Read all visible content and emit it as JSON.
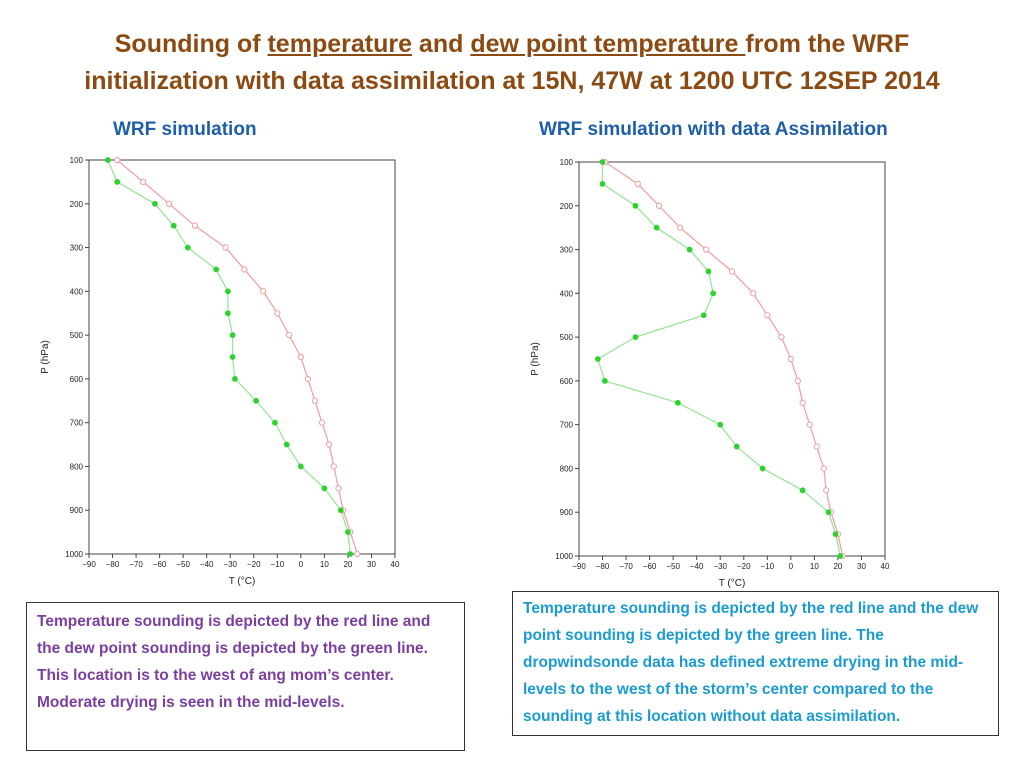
{
  "title": {
    "part1": "Sounding of ",
    "link1": "temperature",
    "part2": " and ",
    "link2": "dew point temperature ",
    "part3": "from the WRF",
    "line2": "initialization with data assimilation at 15N, 47W at 1200 UTC 12SEP 2014"
  },
  "panels": {
    "left_title": "WRF simulation",
    "right_title": "WRF simulation with data Assimilation"
  },
  "captions": {
    "left": "Temperature sounding is depicted by the red line and the dew point sounding is depicted by the green line. This location is to the west of ang mom’s center. Moderate drying is seen in the mid-levels.",
    "right": "Temperature sounding is depicted by the red line and the dew point sounding is depicted by the green line. The dropwindsonde data has defined extreme drying in the mid-levels to the west of the storm’s center compared to the sounding at this location without data assimilation."
  },
  "colors": {
    "temperature": "#F2A3A3",
    "dewpoint": "#2ED12E",
    "dewpoint_line": "#9BE59B"
  },
  "chart_data": [
    {
      "type": "line",
      "xlabel": "T (°C)",
      "ylabel": "P (hPa)",
      "xlim": [
        -90,
        40
      ],
      "ylim": [
        1000,
        100
      ],
      "xticks": [
        "−90",
        "−80",
        "−70",
        "−60",
        "−50",
        "−40",
        "−30",
        "−20",
        "−10",
        "0",
        "10",
        "20",
        "30",
        "40"
      ],
      "yticks": [
        "100",
        "200",
        "300",
        "400",
        "500",
        "600",
        "700",
        "800",
        "900",
        "1000"
      ],
      "grid": false,
      "series": [
        {
          "role": "temperature",
          "points": [
            [
              -78,
              100
            ],
            [
              -67,
              150
            ],
            [
              -56,
              200
            ],
            [
              -45,
              250
            ],
            [
              -32,
              300
            ],
            [
              -24,
              350
            ],
            [
              -16,
              400
            ],
            [
              -10,
              450
            ],
            [
              -5,
              500
            ],
            [
              0,
              550
            ],
            [
              3,
              600
            ],
            [
              6,
              650
            ],
            [
              9,
              700
            ],
            [
              12,
              750
            ],
            [
              14,
              800
            ],
            [
              16,
              850
            ],
            [
              18,
              900
            ],
            [
              21,
              950
            ],
            [
              24,
              1000
            ]
          ]
        },
        {
          "role": "dewpoint",
          "points": [
            [
              -82,
              100
            ],
            [
              -78,
              150
            ],
            [
              -62,
              200
            ],
            [
              -54,
              250
            ],
            [
              -48,
              300
            ],
            [
              -36,
              350
            ],
            [
              -31,
              400
            ],
            [
              -31,
              450
            ],
            [
              -29,
              500
            ],
            [
              -29,
              550
            ],
            [
              -28,
              600
            ],
            [
              -19,
              650
            ],
            [
              -11,
              700
            ],
            [
              -6,
              750
            ],
            [
              0,
              800
            ],
            [
              10,
              850
            ],
            [
              17,
              900
            ],
            [
              20,
              950
            ],
            [
              21,
              1000
            ]
          ]
        }
      ]
    },
    {
      "type": "line",
      "xlabel": "T (°C)",
      "ylabel": "P (hPa)",
      "xlim": [
        -90,
        40
      ],
      "ylim": [
        1000,
        100
      ],
      "xticks": [
        "−90",
        "−80",
        "−70",
        "−60",
        "−50",
        "−40",
        "−30",
        "−20",
        "−10",
        "0",
        "10",
        "20",
        "30",
        "40"
      ],
      "yticks": [
        "100",
        "200",
        "300",
        "400",
        "500",
        "600",
        "700",
        "800",
        "900",
        "1000"
      ],
      "grid": false,
      "series": [
        {
          "role": "temperature",
          "points": [
            [
              -79,
              100
            ],
            [
              -65,
              150
            ],
            [
              -56,
              200
            ],
            [
              -47,
              250
            ],
            [
              -36,
              300
            ],
            [
              -25,
              350
            ],
            [
              -16,
              400
            ],
            [
              -10,
              450
            ],
            [
              -4,
              500
            ],
            [
              0,
              550
            ],
            [
              3,
              600
            ],
            [
              5,
              650
            ],
            [
              8,
              700
            ],
            [
              11,
              750
            ],
            [
              14,
              800
            ],
            [
              15,
              850
            ],
            [
              17,
              900
            ],
            [
              20,
              950
            ],
            [
              22,
              1000
            ]
          ]
        },
        {
          "role": "dewpoint",
          "points": [
            [
              -80,
              100
            ],
            [
              -80,
              150
            ],
            [
              -66,
              200
            ],
            [
              -57,
              250
            ],
            [
              -43,
              300
            ],
            [
              -35,
              350
            ],
            [
              -33,
              400
            ],
            [
              -37,
              450
            ],
            [
              -66,
              500
            ],
            [
              -82,
              550
            ],
            [
              -79,
              600
            ],
            [
              -48,
              650
            ],
            [
              -30,
              700
            ],
            [
              -23,
              750
            ],
            [
              -12,
              800
            ],
            [
              5,
              850
            ],
            [
              16,
              900
            ],
            [
              19,
              950
            ],
            [
              21,
              1000
            ]
          ]
        }
      ]
    }
  ]
}
